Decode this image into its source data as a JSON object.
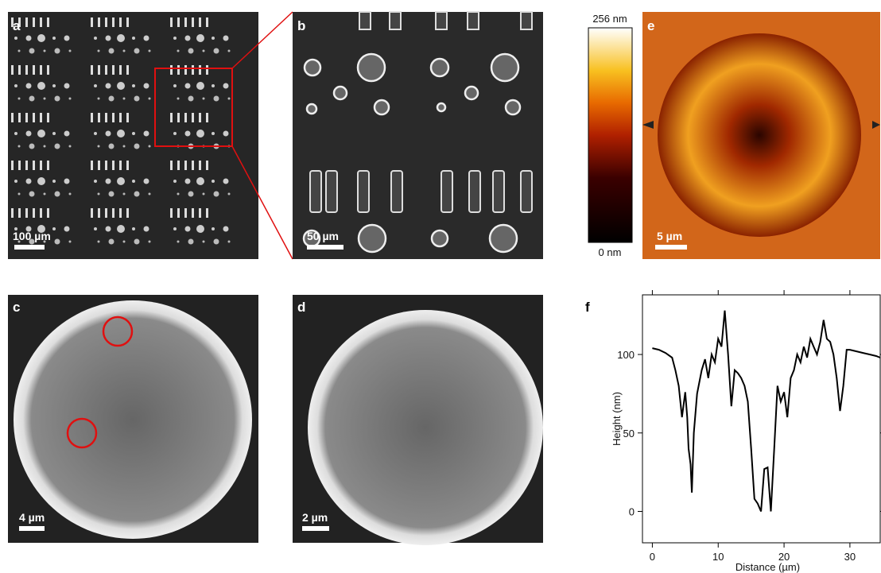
{
  "panels": [
    {
      "label": "a",
      "scale_bar": "100 µm"
    },
    {
      "label": "b",
      "scale_bar": "50 µm"
    },
    {
      "label": "c",
      "scale_bar": "4 µm"
    },
    {
      "label": "d",
      "scale_bar": "2 µm"
    },
    {
      "label": "e",
      "scale_bar": "5 µm"
    }
  ],
  "colorbar": {
    "max_label": "256 nm",
    "min_label": "0 nm"
  },
  "chart_data": {
    "type": "line",
    "label": "f",
    "x_label": "Distance (µm)",
    "y_label": "Height (nm)",
    "x": [
      0,
      1,
      2,
      3,
      3.5,
      4,
      4.5,
      5,
      5.3,
      5.5,
      5.8,
      6,
      6.3,
      6.8,
      7.5,
      8,
      8.5,
      9,
      9.5,
      10,
      10.5,
      11,
      11.5,
      12,
      12.5,
      13,
      13.5,
      14,
      14.5,
      15,
      15.5,
      16,
      16.5,
      17,
      17.5,
      18,
      18.5,
      19,
      19.5,
      20,
      20.5,
      21,
      21.5,
      22,
      22.5,
      23,
      23.5,
      24,
      24.5,
      25,
      25.5,
      26,
      26.5,
      27,
      27.5,
      28,
      28.5,
      29,
      29.5,
      30,
      31,
      32,
      33,
      34,
      34.6
    ],
    "values": [
      104,
      103,
      101,
      98,
      90,
      80,
      60,
      76,
      60,
      40,
      30,
      12,
      50,
      75,
      90,
      97,
      85,
      100,
      95,
      110,
      105,
      128,
      100,
      67,
      90,
      88,
      85,
      80,
      70,
      40,
      8,
      5,
      0,
      27,
      28,
      0,
      40,
      80,
      70,
      76,
      60,
      85,
      90,
      100,
      95,
      105,
      98,
      110,
      105,
      100,
      108,
      122,
      110,
      108,
      100,
      85,
      64,
      80,
      103,
      103,
      102,
      101,
      100,
      99,
      98
    ],
    "color": "#000000",
    "xlim": [
      -1.5,
      34.6
    ],
    "ylim": [
      -20,
      138
    ],
    "xticks": [
      0,
      10,
      20,
      30
    ],
    "yticks": [
      0,
      50,
      100
    ]
  }
}
